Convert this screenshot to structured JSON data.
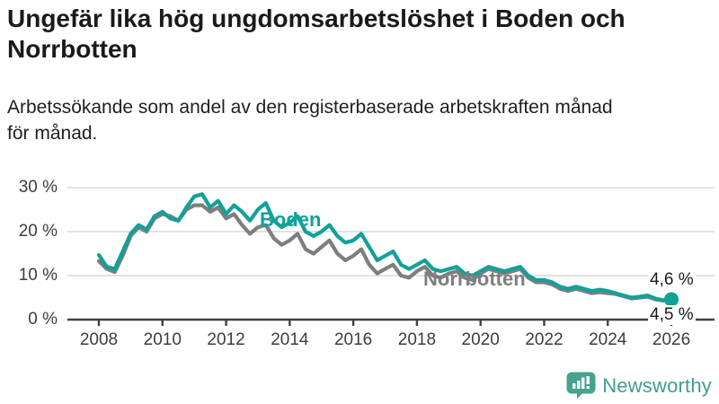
{
  "header": {
    "title_line1": "Ungefär lika hög ungdomsarbetslöshet i Boden och",
    "title_line2": "Norrbotten",
    "subtitle_line1": "Arbetssökande som andel av den registerbaserade arbetskraften månad",
    "subtitle_line2": "för månad."
  },
  "chart_data": {
    "type": "line",
    "title": "Ungefär lika hög ungdomsarbetslöshet i Boden och Norrbotten",
    "subtitle": "Arbetssökande som andel av den registerbaserade arbetskraften månad för månad.",
    "unit": "%",
    "x_start": 2008,
    "x_step": 0.25,
    "x_axis_ticks": [
      2008,
      2010,
      2012,
      2014,
      2016,
      2018,
      2020,
      2022,
      2024,
      2026
    ],
    "y_axis_ticks": [
      {
        "value": 0,
        "label": "0 %"
      },
      {
        "value": 10,
        "label": "10 %"
      },
      {
        "value": 20,
        "label": "20 %"
      },
      {
        "value": 30,
        "label": "30 %"
      }
    ],
    "xlim": [
      2007,
      2026.6
    ],
    "ylim": [
      0,
      32
    ],
    "grid": true,
    "legend_position": "inline-labels",
    "series": [
      {
        "name": "Norrbotten",
        "color": "#7e7e7e",
        "end_value": 4.5,
        "end_label": "4,5 %",
        "values": [
          13.3,
          11.5,
          10.8,
          14.5,
          19.0,
          21.0,
          20.0,
          23.0,
          24.0,
          23.5,
          22.5,
          25.0,
          26.0,
          26.0,
          24.5,
          25.5,
          23.0,
          24.0,
          21.5,
          19.5,
          21.0,
          21.5,
          18.5,
          17.0,
          18.0,
          19.5,
          16.0,
          15.0,
          16.5,
          18.0,
          15.0,
          13.5,
          14.5,
          16.0,
          12.5,
          10.5,
          11.5,
          12.5,
          10.0,
          9.5,
          11.0,
          12.0,
          10.0,
          9.5,
          10.5,
          11.0,
          9.5,
          9.0,
          10.5,
          11.5,
          11.0,
          10.5,
          11.0,
          11.5,
          9.5,
          8.5,
          8.5,
          8.0,
          7.0,
          6.5,
          7.0,
          6.5,
          6.0,
          6.2,
          6.0,
          5.8,
          5.3,
          4.8,
          5.0,
          5.2,
          4.6,
          4.3,
          4.5
        ]
      },
      {
        "name": "Boden",
        "color": "#12a198",
        "end_value": 4.6,
        "end_label": "4,6 %",
        "end_dot": true,
        "values": [
          14.7,
          12.0,
          11.5,
          15.5,
          19.5,
          21.5,
          20.5,
          23.5,
          24.5,
          23.0,
          22.5,
          25.5,
          28.0,
          28.5,
          25.5,
          27.0,
          24.0,
          26.0,
          24.5,
          22.5,
          25.0,
          26.5,
          22.5,
          21.0,
          22.0,
          23.5,
          20.0,
          19.0,
          20.0,
          21.5,
          19.0,
          17.5,
          18.0,
          19.5,
          16.5,
          13.5,
          14.5,
          15.5,
          12.5,
          11.5,
          12.5,
          13.5,
          11.5,
          11.0,
          11.5,
          12.0,
          10.5,
          10.0,
          11.0,
          12.0,
          11.5,
          11.0,
          11.5,
          12.0,
          10.0,
          9.0,
          9.0,
          8.5,
          7.5,
          7.0,
          7.5,
          7.0,
          6.5,
          6.8,
          6.5,
          6.0,
          5.5,
          5.0,
          5.2,
          5.5,
          4.8,
          4.4,
          4.6
        ]
      }
    ]
  },
  "labels": {
    "series_boden": "Boden",
    "series_norrbotten": "Norrbotten",
    "end_boden": "4,6 %",
    "end_norrbotten": "4,5 %"
  },
  "footer": {
    "brand": "Newsworthy"
  },
  "colors": {
    "accent_teal": "#12a198",
    "series_gray": "#7e7e7e",
    "brand_teal": "#3f9e8e",
    "grid": "#d9d9d9",
    "axis": "#404040",
    "text": "#1a1a1a"
  }
}
